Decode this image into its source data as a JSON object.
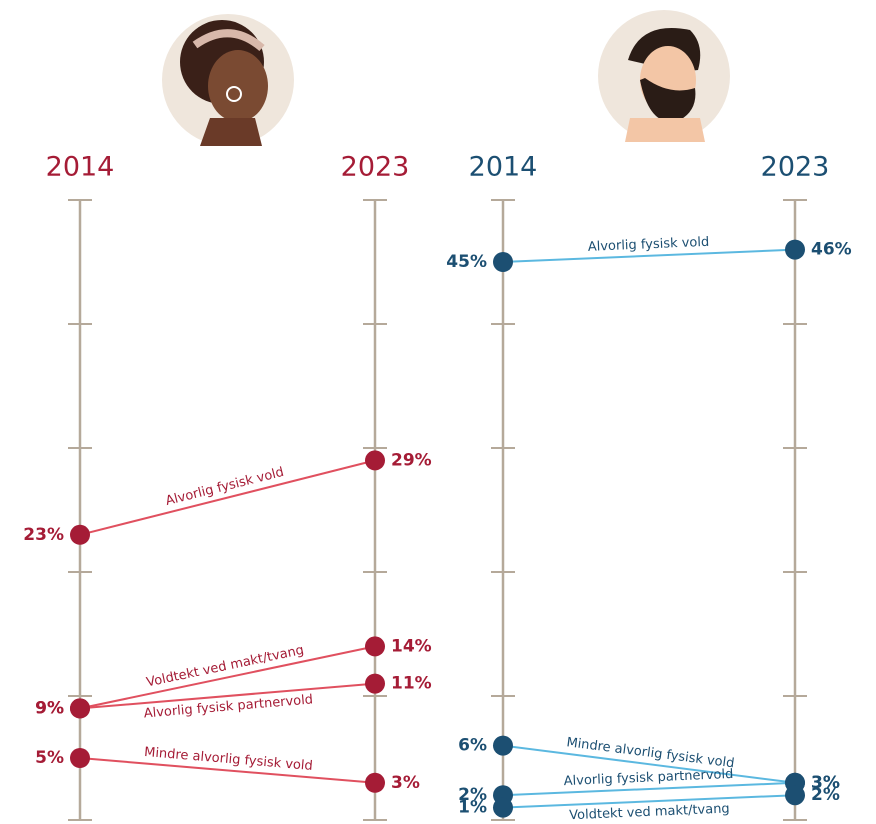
{
  "chart_data": [
    {
      "type": "line",
      "categories": [
        "2014",
        "2023"
      ],
      "ylim": [
        0,
        50
      ],
      "yticks": [
        0,
        10,
        20,
        30,
        40,
        50
      ],
      "color": "#a51c36",
      "line_color": "#e0505f",
      "series": [
        {
          "name": "Alvorlig fysisk vold",
          "values": [
            23,
            29
          ],
          "value_labels": [
            "23%",
            "29%"
          ]
        },
        {
          "name": "Voldtekt ved makt/tvang",
          "values": [
            9,
            14
          ],
          "value_labels": [
            "9%",
            "14%"
          ]
        },
        {
          "name": "Alvorlig fysisk partnervold",
          "values": [
            9,
            11
          ],
          "value_labels": [
            "9%",
            "11%"
          ]
        },
        {
          "name": "Mindre alvorlig fysisk vold",
          "values": [
            5,
            3
          ],
          "value_labels": [
            "5%",
            "3%"
          ]
        }
      ]
    },
    {
      "type": "line",
      "categories": [
        "2014",
        "2023"
      ],
      "ylim": [
        0,
        50
      ],
      "yticks": [
        0,
        10,
        20,
        30,
        40,
        50
      ],
      "color": "#1c4f72",
      "line_color": "#5bb8e0",
      "series": [
        {
          "name": "Alvorlig fysisk vold",
          "values": [
            45,
            46
          ],
          "value_labels": [
            "45%",
            "46%"
          ]
        },
        {
          "name": "Mindre alvorlig fysisk vold",
          "values": [
            6,
            3
          ],
          "value_labels": [
            "6%",
            "3%"
          ]
        },
        {
          "name": "Alvorlig fysisk partnervold",
          "values": [
            2,
            3
          ],
          "value_labels": [
            "2%",
            "3%"
          ]
        },
        {
          "name": "Voldtekt ved makt/tvang",
          "values": [
            1,
            2
          ],
          "value_labels": [
            "1%",
            "2%"
          ]
        }
      ]
    }
  ]
}
